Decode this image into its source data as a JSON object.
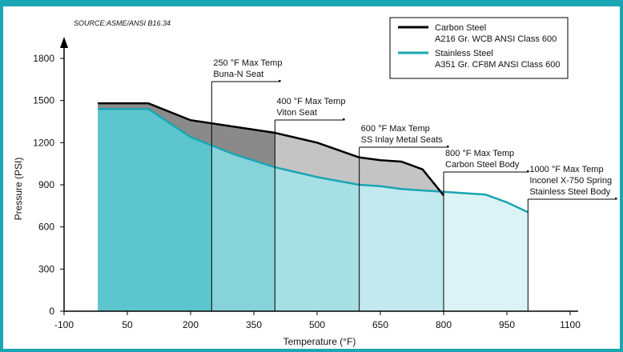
{
  "chart_data": {
    "type": "area",
    "source": "SOURCE:ASME/ANSI B16.34",
    "xlabel": "Temperature (°F)",
    "ylabel": "Pressure (PSI)",
    "xlim": [
      -100,
      1100
    ],
    "ylim": [
      0,
      1800
    ],
    "x_ticks": [
      -100,
      50,
      200,
      350,
      500,
      650,
      800,
      950,
      1100
    ],
    "y_ticks": [
      0,
      300,
      600,
      900,
      1200,
      1500,
      1800
    ],
    "legend_position": "top-right",
    "series": [
      {
        "name": "Carbon Steel A216 Gr. WCB ANSI Class 600",
        "legend_lines": [
          "Carbon Steel",
          "A216 Gr. WCB ANSI Class 600"
        ],
        "color": "#000000",
        "x": [
          -20,
          100,
          200,
          300,
          400,
          500,
          600,
          650,
          700,
          750,
          800
        ],
        "y": [
          1480,
          1480,
          1360,
          1315,
          1270,
          1200,
          1095,
          1075,
          1065,
          1010,
          825
        ]
      },
      {
        "name": "Stainless Steel A351 Gr. CF8M ANSI Class 600",
        "legend_lines": [
          "Stainless Steel",
          "A351 Gr. CF8M ANSI Class 600"
        ],
        "color": "#1aa6b2",
        "x": [
          -20,
          100,
          200,
          300,
          400,
          500,
          600,
          650,
          700,
          800,
          900,
          950,
          1000
        ],
        "y": [
          1440,
          1440,
          1240,
          1120,
          1025,
          955,
          900,
          890,
          870,
          850,
          830,
          775,
          705
        ]
      }
    ],
    "annotations": [
      {
        "x": 250,
        "lines": [
          "250 °F Max Temp",
          "Buna-N Seat"
        ]
      },
      {
        "x": 400,
        "lines": [
          "400 °F Max Temp",
          "Viton Seat"
        ]
      },
      {
        "x": 600,
        "lines": [
          "600 °F Max Temp",
          "SS Inlay Metal Seats"
        ]
      },
      {
        "x": 800,
        "lines": [
          "800 °F Max Temp",
          "Carbon Steel Body"
        ]
      },
      {
        "x": 1000,
        "lines": [
          "1000 °F Max Temp",
          "Inconel X-750 Spring",
          "Stainless Steel Body"
        ]
      }
    ],
    "colors": {
      "band_fills": [
        "#5cc5cd",
        "#86d3d9",
        "#a6dfe4",
        "#c2e9ed",
        "#dcf3f5"
      ],
      "gap_fill_dark": "#8a8a8a",
      "gap_fill_light": "#c4c4c4",
      "frame": "#1aa6b2"
    }
  }
}
